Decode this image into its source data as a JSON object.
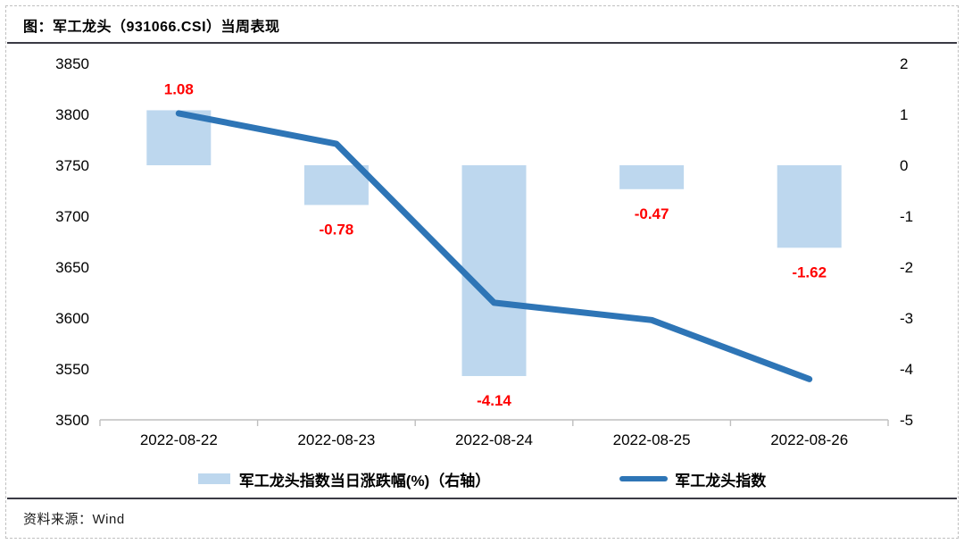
{
  "page": {
    "title": "图：军工龙头（931066.CSI）当周表现",
    "source": "资料来源：Wind"
  },
  "colors": {
    "bar_fill": "#BDD7EE",
    "line": "#2E75B6",
    "data_label": "#FF0000",
    "axis_text": "#000000",
    "axis_line": "#BFBFBF",
    "rule": "#3A3A44"
  },
  "chart_data": {
    "type": "combo",
    "title": "图：军工龙头（931066.CSI）当周表现",
    "categories": [
      "2022-08-22",
      "2022-08-23",
      "2022-08-24",
      "2022-08-25",
      "2022-08-26"
    ],
    "series": [
      {
        "name": "军工龙头指数当日涨跌幅(%)（右轴）",
        "type": "bar",
        "axis": "right",
        "values": [
          1.08,
          -0.78,
          -4.14,
          -0.47,
          -1.62
        ],
        "labels": [
          "1.08",
          "-0.78",
          "-4.14",
          "-0.47",
          "-1.62"
        ]
      },
      {
        "name": "军工龙头指数",
        "type": "line",
        "axis": "left",
        "values": [
          3801,
          3771,
          3615,
          3598,
          3540
        ]
      }
    ],
    "left_axis": {
      "min": 3500,
      "max": 3850,
      "step": 50,
      "ticks": [
        "3850",
        "3800",
        "3750",
        "3700",
        "3650",
        "3600",
        "3550",
        "3500"
      ]
    },
    "right_axis": {
      "min": -5,
      "max": 2,
      "step": 1,
      "ticks": [
        "2",
        "1",
        "0",
        "-1",
        "-2",
        "-3",
        "-4",
        "-5"
      ]
    },
    "grid": false,
    "legend_position": "bottom"
  }
}
